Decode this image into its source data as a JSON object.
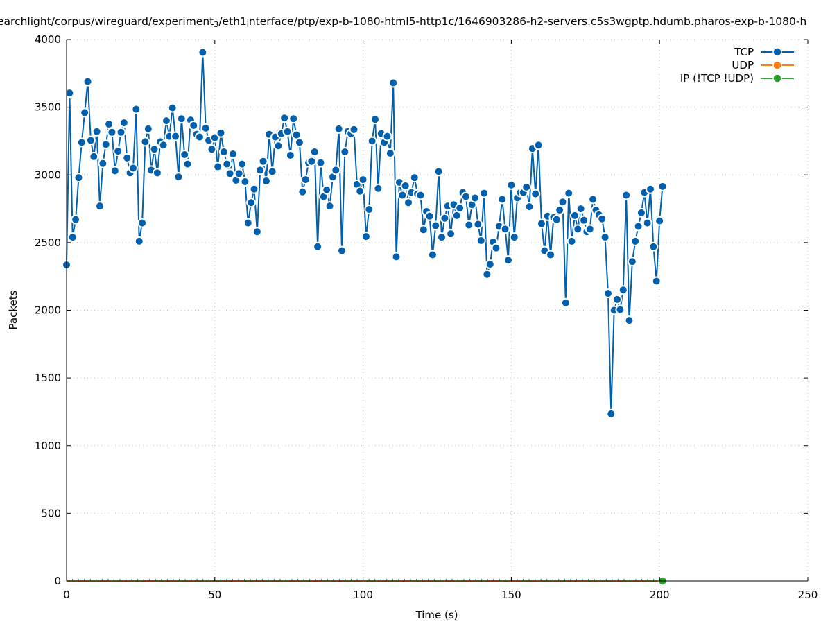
{
  "chart_data": {
    "type": "line",
    "title_parts": [
      {
        "text": "earchlight/corpus/wireguard/experiment",
        "sub": false
      },
      {
        "text": "3",
        "sub": true
      },
      {
        "text": "/eth1",
        "sub": false
      },
      {
        "text": "i",
        "sub": true
      },
      {
        "text": "nterface/ptp/exp-b-1080-html5-http1c/1646903286-h2-servers.c5s3wgptp.hdumb.pharos-exp-b-1080-h",
        "sub": false
      }
    ],
    "xlabel": "Time (s)",
    "ylabel": "Packets",
    "xlim": [
      0,
      250
    ],
    "ylim": [
      0,
      4000
    ],
    "xticks": [
      0,
      50,
      100,
      150,
      200,
      250
    ],
    "yticks": [
      0,
      500,
      1000,
      1500,
      2000,
      2500,
      3000,
      3500,
      4000
    ],
    "grid": true,
    "legend_position": "top-right",
    "x_range_of_samples": [
      0,
      201
    ],
    "series": [
      {
        "name": "TCP",
        "color": "#0060ad",
        "values": [
          2335,
          3605,
          2540,
          2670,
          2980,
          3240,
          3460,
          3690,
          3255,
          3135,
          3320,
          2770,
          3085,
          3225,
          3375,
          3315,
          3030,
          3175,
          3315,
          3385,
          3125,
          3015,
          3050,
          3485,
          2510,
          2645,
          3245,
          3340,
          3035,
          3190,
          3015,
          3245,
          3220,
          3400,
          3285,
          3495,
          3285,
          2985,
          3415,
          3150,
          3080,
          3405,
          3365,
          3300,
          3280,
          3905,
          3345,
          3255,
          3190,
          3275,
          3060,
          3310,
          3170,
          3080,
          3010,
          3155,
          2960,
          3010,
          3080,
          2950,
          2645,
          2795,
          2895,
          2580,
          3035,
          3100,
          2955,
          3300,
          3025,
          3280,
          3215,
          3305,
          3420,
          3320,
          3145,
          3415,
          3295,
          3240,
          2875,
          2965,
          3090,
          3100,
          3170,
          2470,
          3090,
          2840,
          2890,
          2770,
          2985,
          3035,
          3340,
          2440,
          3170,
          3320,
          3305,
          3335,
          2930,
          2880,
          2965,
          2545,
          2745,
          3250,
          3410,
          2900,
          3305,
          3240,
          3285,
          3160,
          3680,
          2395,
          2945,
          2850,
          2920,
          2795,
          2870,
          2980,
          2860,
          2850,
          2595,
          2730,
          2695,
          2410,
          2625,
          3025,
          2540,
          2680,
          2770,
          2565,
          2780,
          2700,
          2755,
          2870,
          2840,
          2630,
          2780,
          2830,
          2635,
          2515,
          2865,
          2265,
          2340,
          2505,
          2460,
          2620,
          2820,
          2600,
          2370,
          2925,
          2540,
          2830,
          2870,
          2870,
          2910,
          2765,
          3195,
          2860,
          3220,
          2640,
          2440,
          2695,
          2410,
          2685,
          2670,
          2740,
          2800,
          2055,
          2865,
          2510,
          2700,
          2600,
          2750,
          2665,
          2580,
          2600,
          2820,
          2740,
          2705,
          2675,
          2540,
          2125,
          1235,
          2000,
          2080,
          2005,
          2150,
          2850,
          1925,
          2360,
          2510,
          2620,
          2720,
          2870,
          2645,
          2895,
          2470,
          2215,
          2660,
          2915
        ]
      },
      {
        "name": "UDP",
        "color": "#ff7f0e",
        "values": [
          0
        ]
      },
      {
        "name": "IP (!TCP  !UDP)",
        "color": "#2ca02c",
        "values": [
          0
        ]
      }
    ]
  }
}
